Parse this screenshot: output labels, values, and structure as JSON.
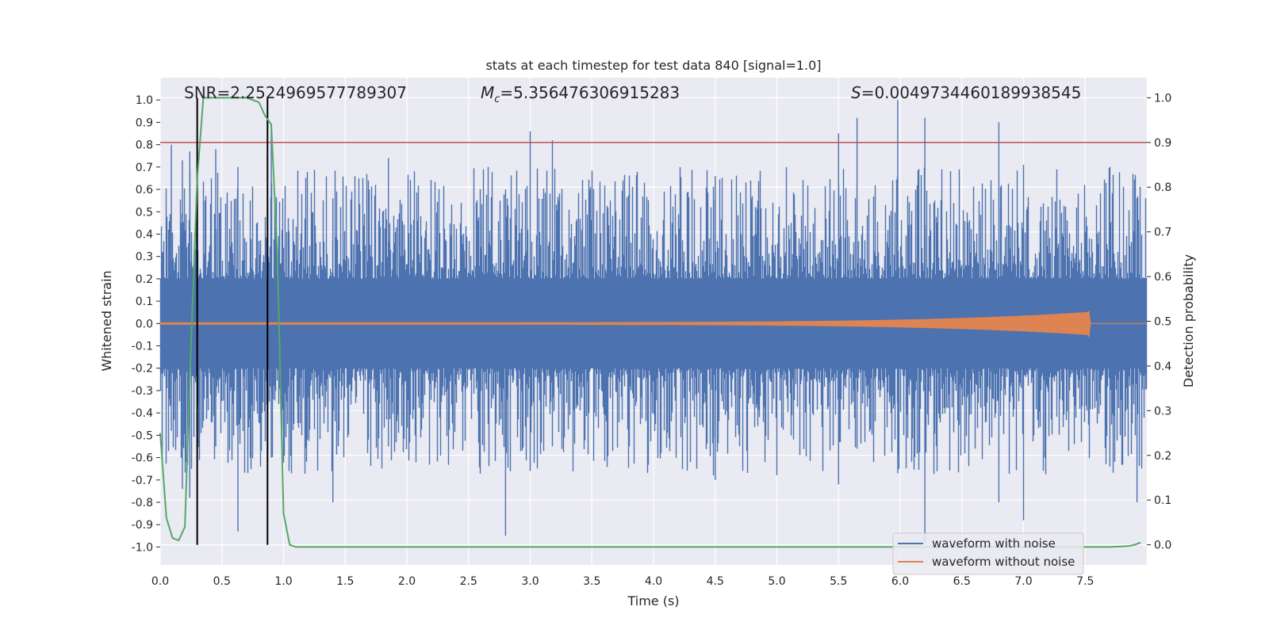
{
  "chart_data": {
    "type": "line",
    "title": "stats at each timestep for test data 840 [signal=1.0]",
    "xlabel": "Time (s)",
    "ylabel": "Whitened strain",
    "y2label": "Detection probability",
    "xlim": [
      0.0,
      8.0
    ],
    "ylim": [
      -1.08,
      1.1
    ],
    "y2lim": [
      -0.045,
      1.045
    ],
    "x_ticks": [
      "0.0",
      "0.5",
      "1.0",
      "1.5",
      "2.0",
      "2.5",
      "3.0",
      "3.5",
      "4.0",
      "4.5",
      "5.0",
      "5.5",
      "6.0",
      "6.5",
      "7.0",
      "7.5"
    ],
    "y_ticks": [
      "1.0",
      "0.9",
      "0.8",
      "0.7",
      "0.6",
      "0.5",
      "0.4",
      "0.3",
      "0.2",
      "0.1",
      "0.0",
      "-0.1",
      "-0.2",
      "-0.3",
      "-0.4",
      "-0.5",
      "-0.6",
      "-0.7",
      "-0.8",
      "-0.9",
      "-1.0"
    ],
    "y2_ticks": [
      "1.0",
      "0.9",
      "0.8",
      "0.7",
      "0.6",
      "0.5",
      "0.4",
      "0.3",
      "0.2",
      "0.1",
      "0.0"
    ],
    "grid": true,
    "legend_position": "bottom-right",
    "annotations": {
      "snr": "SNR=2.2524969577789307",
      "mc_symbol": "M",
      "mc_sub": "c",
      "mc_value": "=5.356476306915283",
      "s_symbol": "S",
      "s_value": "=0.004973446018993854​5"
    },
    "threshold": {
      "axis": "y2",
      "value": 0.9,
      "color": "#c44e52"
    },
    "vertical_lines": [
      0.3,
      0.87
    ],
    "series": [
      {
        "name": "waveform with noise",
        "color": "#4c72b0",
        "kind": "noise_envelope",
        "spikes": [
          [
            0.09,
            0.8,
            -0.48
          ],
          [
            0.18,
            0.73,
            -0.74
          ],
          [
            0.24,
            0.77,
            -0.78
          ],
          [
            0.45,
            0.78,
            -0.55
          ],
          [
            0.63,
            0.7,
            -0.93
          ],
          [
            0.9,
            0.89,
            -0.6
          ],
          [
            1.4,
            0.56,
            -0.8
          ],
          [
            1.85,
            0.74,
            -0.55
          ],
          [
            2.8,
            0.6,
            -0.95
          ],
          [
            3.0,
            0.86,
            -0.66
          ],
          [
            3.18,
            0.82,
            -0.55
          ],
          [
            4.5,
            0.66,
            -0.7
          ],
          [
            5.5,
            0.85,
            -0.72
          ],
          [
            5.65,
            0.92,
            -0.56
          ],
          [
            5.98,
            1.0,
            -0.67
          ],
          [
            6.2,
            0.92,
            -0.98
          ],
          [
            6.8,
            0.9,
            -0.8
          ],
          [
            7.0,
            0.71,
            -0.88
          ],
          [
            7.7,
            0.7,
            -0.64
          ],
          [
            7.92,
            0.56,
            -0.8
          ]
        ]
      },
      {
        "name": "waveform without noise",
        "color": "#dd8452",
        "kind": "chirp",
        "amplitude_start": 0.004,
        "amplitude_peak": 0.05,
        "merger_time": 7.53
      },
      {
        "name": "detection probability",
        "color": "#55a868",
        "axis": "y2",
        "x": [
          0.0,
          0.05,
          0.1,
          0.15,
          0.2,
          0.25,
          0.3,
          0.35,
          0.4,
          0.5,
          0.6,
          0.7,
          0.8,
          0.85,
          0.9,
          0.95,
          1.0,
          1.05,
          1.1,
          1.5,
          2.0,
          3.0,
          4.0,
          5.0,
          6.0,
          7.0,
          7.5,
          7.7,
          7.85,
          7.9,
          7.95
        ],
        "y": [
          0.25,
          0.06,
          0.015,
          0.01,
          0.04,
          0.45,
          0.82,
          1.0,
          1.0,
          1.0,
          1.0,
          1.0,
          0.99,
          0.96,
          0.94,
          0.65,
          0.07,
          0.0,
          -0.005,
          -0.005,
          -0.005,
          -0.005,
          -0.005,
          -0.005,
          -0.005,
          -0.005,
          -0.005,
          -0.005,
          -0.003,
          0.0,
          0.005
        ]
      }
    ]
  },
  "legend": [
    {
      "label": "waveform with noise",
      "color": "#4c72b0"
    },
    {
      "label": "waveform without noise",
      "color": "#dd8452"
    }
  ]
}
